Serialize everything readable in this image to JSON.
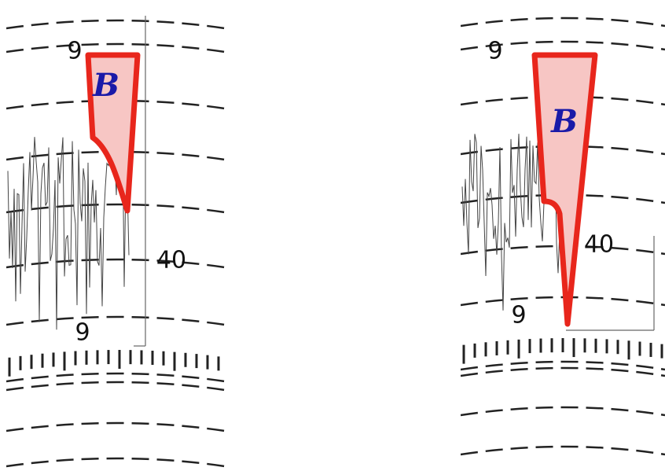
{
  "panels": [
    {
      "top_label": "9",
      "mid_label": "40",
      "bottom_label": "9",
      "badge": "B"
    },
    {
      "top_label": "9",
      "mid_label": "40",
      "bottom_label": "9",
      "badge": "B"
    }
  ]
}
